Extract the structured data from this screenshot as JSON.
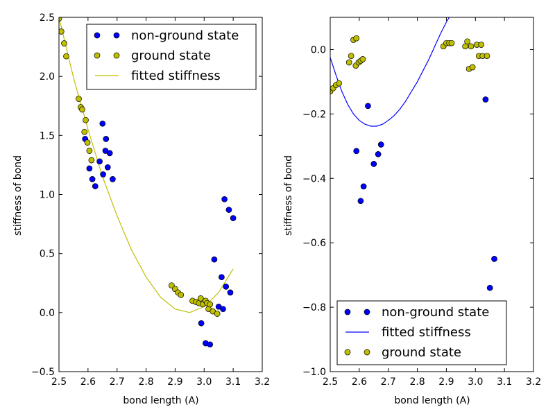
{
  "colors": {
    "non_ground": "#0000ff",
    "ground": "#bfbf00",
    "fit_left": "#bfbf00",
    "fit_right": "#0000ff",
    "marker_edge": "#000000"
  },
  "chart_data": [
    {
      "type": "scatter",
      "title": "",
      "xlabel": "bond length (A)",
      "ylabel": "stiffness of bond",
      "xlim": [
        2.5,
        3.2
      ],
      "ylim": [
        -0.5,
        2.5
      ],
      "xticks": [
        2.5,
        2.6,
        2.7,
        2.8,
        2.9,
        3.0,
        3.1,
        3.2
      ],
      "yticks": [
        -0.5,
        0.0,
        0.5,
        1.0,
        1.5,
        2.0,
        2.5
      ],
      "xtick_labels": [
        "2.5",
        "2.6",
        "2.7",
        "2.8",
        "2.9",
        "3.0",
        "3.1",
        "3.2"
      ],
      "ytick_labels": [
        "−0.5",
        "0.0",
        "0.5",
        "1.0",
        "1.5",
        "2.0",
        "2.5"
      ],
      "legend_position": "top-right",
      "legend": [
        "non-ground state",
        "ground state",
        "fitted stiffness"
      ],
      "series": [
        {
          "name": "non-ground state",
          "kind": "markers",
          "color": "#0000ff",
          "points": [
            [
              2.59,
              1.47
            ],
            [
              2.605,
              1.22
            ],
            [
              2.615,
              1.13
            ],
            [
              2.625,
              1.07
            ],
            [
              2.64,
              1.28
            ],
            [
              2.65,
              1.6
            ],
            [
              2.652,
              1.17
            ],
            [
              2.66,
              1.37
            ],
            [
              2.662,
              1.47
            ],
            [
              2.668,
              1.23
            ],
            [
              2.675,
              1.35
            ],
            [
              2.685,
              1.13
            ],
            [
              2.99,
              -0.09
            ],
            [
              3.005,
              -0.26
            ],
            [
              3.02,
              -0.27
            ],
            [
              3.035,
              0.45
            ],
            [
              3.05,
              0.05
            ],
            [
              3.06,
              0.3
            ],
            [
              3.065,
              0.03
            ],
            [
              3.07,
              0.96
            ],
            [
              3.075,
              0.22
            ],
            [
              3.085,
              0.87
            ],
            [
              3.09,
              0.17
            ],
            [
              3.1,
              0.8
            ]
          ]
        },
        {
          "name": "ground state",
          "kind": "markers",
          "color": "#bfbf00",
          "points": [
            [
              2.5,
              2.49
            ],
            [
              2.508,
              2.38
            ],
            [
              2.518,
              2.28
            ],
            [
              2.525,
              2.17
            ],
            [
              2.568,
              1.81
            ],
            [
              2.575,
              1.74
            ],
            [
              2.58,
              1.72
            ],
            [
              2.588,
              1.53
            ],
            [
              2.592,
              1.63
            ],
            [
              2.598,
              1.44
            ],
            [
              2.605,
              1.37
            ],
            [
              2.612,
              1.29
            ],
            [
              2.888,
              0.23
            ],
            [
              2.9,
              0.2
            ],
            [
              2.91,
              0.17
            ],
            [
              2.92,
              0.15
            ],
            [
              2.96,
              0.1
            ],
            [
              2.972,
              0.09
            ],
            [
              2.982,
              0.08
            ],
            [
              2.988,
              0.12
            ],
            [
              2.995,
              0.07
            ],
            [
              3.005,
              0.1
            ],
            [
              3.01,
              0.08
            ],
            [
              3.015,
              0.03
            ],
            [
              3.02,
              0.07
            ],
            [
              3.03,
              0.01
            ],
            [
              3.045,
              -0.01
            ]
          ]
        },
        {
          "name": "fitted stiffness",
          "kind": "line",
          "color": "#bfbf00",
          "points": [
            [
              2.5,
              2.5
            ],
            [
              2.55,
              1.99
            ],
            [
              2.6,
              1.55
            ],
            [
              2.65,
              1.15
            ],
            [
              2.7,
              0.82
            ],
            [
              2.75,
              0.53
            ],
            [
              2.8,
              0.3
            ],
            [
              2.85,
              0.13
            ],
            [
              2.9,
              0.03
            ],
            [
              2.95,
              0.0
            ],
            [
              3.0,
              0.05
            ],
            [
              3.05,
              0.17
            ],
            [
              3.1,
              0.37
            ]
          ]
        }
      ]
    },
    {
      "type": "scatter",
      "title": "",
      "xlabel": "bond length (A)",
      "ylabel": "stiffness of bond",
      "xlim": [
        2.5,
        3.2
      ],
      "ylim": [
        -1.0,
        0.1
      ],
      "xticks": [
        2.5,
        2.6,
        2.7,
        2.8,
        2.9,
        3.0,
        3.1,
        3.2
      ],
      "yticks": [
        -1.0,
        -0.8,
        -0.6,
        -0.4,
        -0.2,
        0.0
      ],
      "xtick_labels": [
        "2.5",
        "2.6",
        "2.7",
        "2.8",
        "2.9",
        "3.0",
        "3.1",
        "3.2"
      ],
      "ytick_labels": [
        "−1.0",
        "−0.8",
        "−0.6",
        "−0.4",
        "−0.2",
        "0.0"
      ],
      "legend_position": "bottom-left",
      "legend": [
        "non-ground state",
        "fitted stiffness",
        "ground state"
      ],
      "series": [
        {
          "name": "non-ground state",
          "kind": "markers",
          "color": "#0000ff",
          "points": [
            [
              2.59,
              -0.315
            ],
            [
              2.605,
              -0.47
            ],
            [
              2.615,
              -0.425
            ],
            [
              2.63,
              -0.175
            ],
            [
              2.65,
              -0.355
            ],
            [
              2.665,
              -0.325
            ],
            [
              2.675,
              -0.295
            ],
            [
              3.035,
              -0.155
            ],
            [
              3.05,
              -0.74
            ],
            [
              3.065,
              -0.65
            ]
          ]
        },
        {
          "name": "fitted stiffness",
          "kind": "line",
          "color": "#0000ff",
          "points": [
            [
              2.5,
              -0.025
            ],
            [
              2.52,
              -0.08
            ],
            [
              2.54,
              -0.13
            ],
            [
              2.56,
              -0.17
            ],
            [
              2.58,
              -0.2
            ],
            [
              2.6,
              -0.22
            ],
            [
              2.62,
              -0.232
            ],
            [
              2.64,
              -0.238
            ],
            [
              2.66,
              -0.238
            ],
            [
              2.68,
              -0.232
            ],
            [
              2.7,
              -0.22
            ],
            [
              2.72,
              -0.205
            ],
            [
              2.74,
              -0.185
            ],
            [
              2.76,
              -0.16
            ],
            [
              2.78,
              -0.13
            ],
            [
              2.8,
              -0.1
            ],
            [
              2.82,
              -0.065
            ],
            [
              2.84,
              -0.03
            ],
            [
              2.86,
              0.01
            ],
            [
              2.88,
              0.05
            ],
            [
              2.9,
              0.085
            ],
            [
              2.91,
              0.1
            ]
          ]
        },
        {
          "name": "ground state",
          "kind": "markers",
          "color": "#bfbf00",
          "points": [
            [
              2.5,
              -0.13
            ],
            [
              2.51,
              -0.12
            ],
            [
              2.52,
              -0.11
            ],
            [
              2.53,
              -0.105
            ],
            [
              2.565,
              -0.04
            ],
            [
              2.572,
              -0.02
            ],
            [
              2.58,
              0.03
            ],
            [
              2.588,
              -0.05
            ],
            [
              2.59,
              0.035
            ],
            [
              2.598,
              -0.04
            ],
            [
              2.605,
              -0.035
            ],
            [
              2.612,
              -0.03
            ],
            [
              2.89,
              0.01
            ],
            [
              2.9,
              0.02
            ],
            [
              2.91,
              0.02
            ],
            [
              2.918,
              0.02
            ],
            [
              2.965,
              0.01
            ],
            [
              2.972,
              0.025
            ],
            [
              2.978,
              -0.06
            ],
            [
              2.985,
              0.01
            ],
            [
              2.99,
              -0.055
            ],
            [
              3.005,
              0.015
            ],
            [
              3.012,
              -0.02
            ],
            [
              3.02,
              0.015
            ],
            [
              3.025,
              -0.02
            ],
            [
              3.04,
              -0.02
            ]
          ]
        }
      ]
    }
  ]
}
